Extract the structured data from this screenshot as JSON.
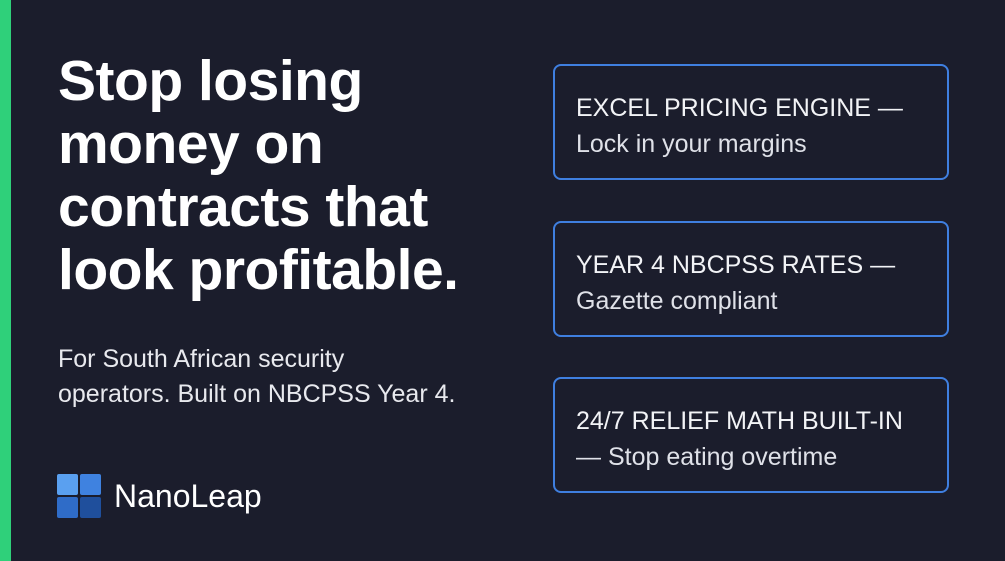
{
  "headline": {
    "lines": [
      "Stop losing",
      "money on",
      "contracts that",
      "look profitable."
    ]
  },
  "subtitle": {
    "lines": [
      "For South African security",
      "operators. Built on NBCPSS Year 4."
    ]
  },
  "brand": {
    "name": "NanoLeap"
  },
  "cards": [
    {
      "lines": [
        "EXCEL PRICING ENGINE —",
        "Lock in your margins"
      ]
    },
    {
      "lines": [
        "YEAR 4 NBCPSS RATES —",
        "Gazette compliant"
      ]
    },
    {
      "lines": [
        "24/7 RELIEF MATH BUILT-IN",
        "— Stop eating overtime"
      ]
    }
  ]
}
